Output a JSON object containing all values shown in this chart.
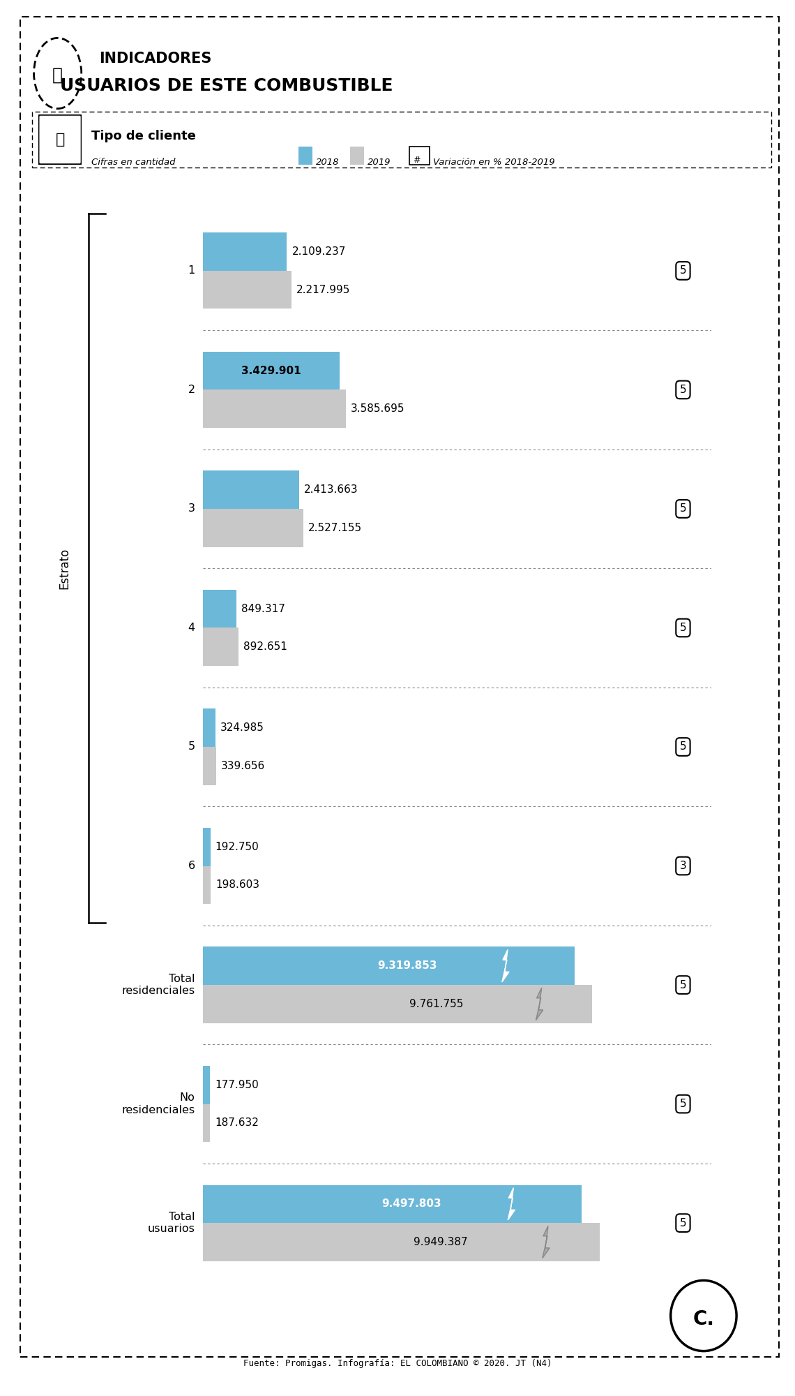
{
  "title_label": "INDICADORES",
  "title_main": "USUARIOS DE ESTE COMBUSTIBLE",
  "section_title": "Tipo de cliente",
  "subtitle": "Cifras en cantidad",
  "legend_2018": "2018",
  "legend_2019": "2019",
  "legend_var": "Variación en % 2018-2019",
  "color_2018": "#6cb8d8",
  "color_2019": "#c8c8c8",
  "color_bg": "#ffffff",
  "ylabel": "Estrato",
  "categories": [
    "1",
    "2",
    "3",
    "4",
    "5",
    "6",
    "Total\nresidenciales",
    "No\nresidenciales",
    "Total\nusuarios"
  ],
  "values_2018": [
    2109237,
    3429901,
    2413663,
    849317,
    324985,
    192750,
    9319853,
    177950,
    9497803
  ],
  "values_2019": [
    2217995,
    3585695,
    2527155,
    892651,
    339656,
    198603,
    9761755,
    187632,
    9949387
  ],
  "labels_2018": [
    "2.109.237",
    "3.429.901",
    "2.413.663",
    "849.317",
    "324.985",
    "192.750",
    "9.319.853",
    "177.950",
    "9.497.803"
  ],
  "labels_2019": [
    "2.217.995",
    "3.585.695",
    "2.527.155",
    "892.651",
    "339.656",
    "198.603",
    "9.761.755",
    "187.632",
    "9.949.387"
  ],
  "variation_labels": [
    "5",
    "5",
    "5",
    "5",
    "5",
    "3",
    "5",
    "5",
    "5"
  ],
  "label_inside_2018": [
    false,
    true,
    false,
    false,
    false,
    false,
    true,
    false,
    true
  ],
  "is_total": [
    false,
    false,
    false,
    false,
    false,
    false,
    true,
    false,
    true
  ],
  "source": "Fuente: Promigas. Infografía: EL COLOMBIANO © 2020. JT (N4)",
  "max_value": 10200000,
  "estrato_indices": [
    0,
    1,
    2,
    3,
    4,
    5
  ]
}
